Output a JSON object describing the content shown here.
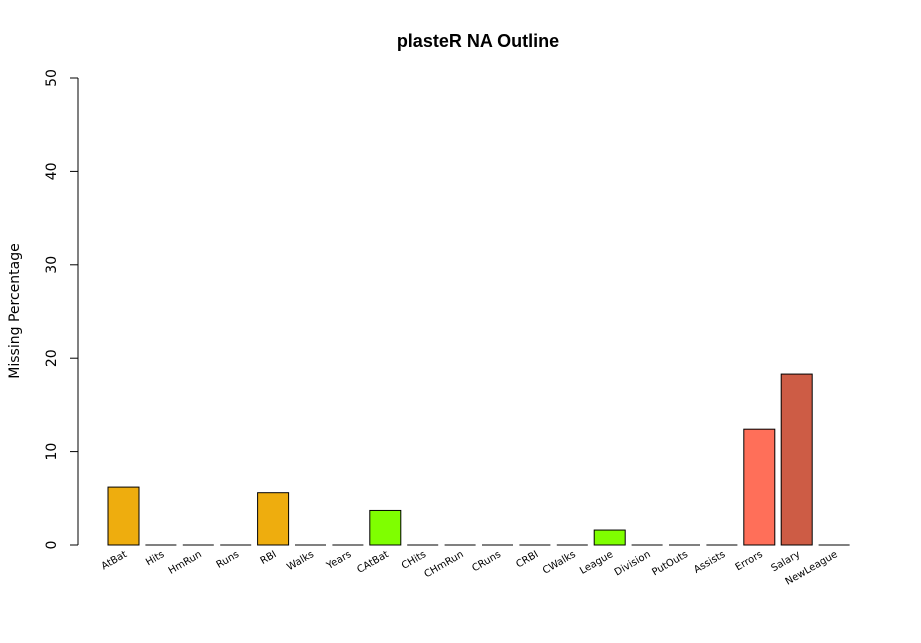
{
  "chart_data": {
    "type": "bar",
    "title": "plasteR NA Outline",
    "xlabel": "",
    "ylabel": "Missing Percentage",
    "ylim": [
      0,
      50
    ],
    "yticks": [
      0,
      10,
      20,
      30,
      40,
      50
    ],
    "grid": false,
    "categories": [
      "AtBat",
      "Hits",
      "HmRun",
      "Runs",
      "RBI",
      "Walks",
      "Years",
      "CAtBat",
      "CHits",
      "CHmRun",
      "CRuns",
      "CRBI",
      "CWalks",
      "League",
      "Division",
      "PutOuts",
      "Assists",
      "Errors",
      "Salary",
      "NewLeague"
    ],
    "values": [
      6.2,
      0,
      0,
      0,
      5.6,
      0,
      0,
      3.7,
      0,
      0,
      0,
      0,
      0,
      1.6,
      0,
      0,
      0,
      12.4,
      18.3,
      0
    ],
    "colors": [
      "#EEAD0E",
      "#000000",
      "#000000",
      "#000000",
      "#EEAD0E",
      "#000000",
      "#000000",
      "#7FFF00",
      "#000000",
      "#000000",
      "#000000",
      "#000000",
      "#000000",
      "#7FFF00",
      "#000000",
      "#000000",
      "#000000",
      "#FF6F59",
      "#CD5C45",
      "#000000"
    ]
  }
}
